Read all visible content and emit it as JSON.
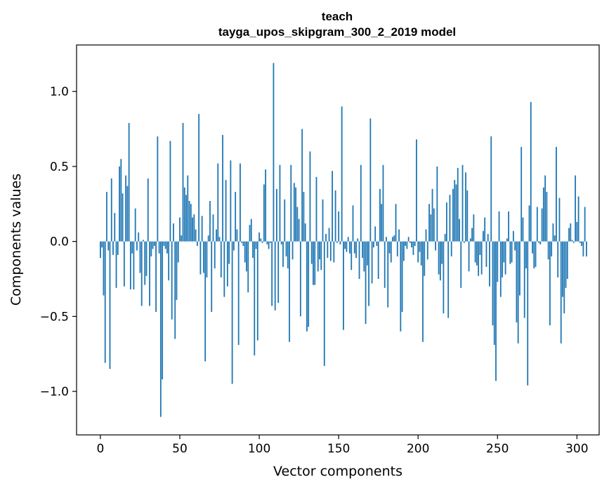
{
  "chart_data": {
    "type": "bar",
    "title_line1": "teach",
    "title_line2": "tayga_upos_skipgram_300_2_2019 model",
    "xlabel": "Vector components",
    "ylabel": "Components values",
    "xlim": [
      -15,
      314
    ],
    "ylim": [
      -1.29,
      1.31
    ],
    "xticks": [
      0,
      50,
      100,
      150,
      200,
      250,
      300
    ],
    "xtick_labels": [
      "0",
      "50",
      "100",
      "150",
      "200",
      "250",
      "300"
    ],
    "yticks": [
      -1.0,
      -0.5,
      0.0,
      0.5,
      1.0
    ],
    "ytick_labels": [
      "−1.0",
      "−0.5",
      "0.0",
      "0.5",
      "1.0"
    ],
    "bar_color": "#1f77b4",
    "values": [
      -0.11,
      -0.04,
      -0.36,
      -0.81,
      0.33,
      -0.06,
      -0.85,
      0.42,
      -0.09,
      0.19,
      -0.31,
      -0.09,
      0.5,
      0.55,
      0.32,
      -0.3,
      0.44,
      0.37,
      0.79,
      -0.32,
      -0.08,
      -0.32,
      0.22,
      -0.06,
      0.06,
      -0.21,
      -0.43,
      0.01,
      -0.29,
      -0.23,
      0.42,
      -0.43,
      -0.1,
      -0.05,
      -0.03,
      -0.47,
      0.7,
      -0.08,
      -1.17,
      -0.92,
      -0.03,
      -0.05,
      -0.08,
      -0.26,
      0.67,
      -0.52,
      0.12,
      -0.65,
      -0.39,
      -0.14,
      0.16,
      0.04,
      0.79,
      0.36,
      0.31,
      0.44,
      0.27,
      0.25,
      0.16,
      0.18,
      0.08,
      -0.03,
      0.85,
      -0.22,
      0.17,
      -0.21,
      -0.8,
      -0.24,
      0.04,
      0.27,
      -0.47,
      0.18,
      -0.18,
      0.08,
      0.52,
      0.03,
      -0.24,
      0.71,
      -0.37,
      0.41,
      -0.3,
      -0.15,
      0.54,
      -0.95,
      -0.06,
      0.33,
      0.08,
      -0.69,
      0.52,
      -0.01,
      -0.03,
      -0.14,
      -0.2,
      -0.34,
      0.11,
      0.15,
      -0.11,
      -0.76,
      -0.05,
      -0.66,
      0.06,
      0.02,
      -0.01,
      0.38,
      0.48,
      -0.02,
      -0.05,
      -0.01,
      -0.43,
      1.19,
      -0.46,
      0.35,
      -0.41,
      0.51,
      -0.02,
      -0.17,
      0.28,
      -0.1,
      -0.18,
      -0.67,
      0.51,
      -0.12,
      0.39,
      0.36,
      0.23,
      0.15,
      -0.5,
      0.75,
      0.33,
      0.12,
      -0.6,
      -0.57,
      0.6,
      -0.15,
      -0.29,
      -0.29,
      0.43,
      -0.2,
      -0.12,
      -0.19,
      0.28,
      -0.83,
      0.05,
      -0.11,
      0.09,
      -0.13,
      0.47,
      -0.14,
      0.34,
      -0.01,
      0.2,
      -0.02,
      0.9,
      -0.59,
      -0.05,
      -0.07,
      0.03,
      -0.08,
      -0.19,
      0.24,
      -0.08,
      -0.11,
      0.02,
      -0.25,
      0.51,
      -0.11,
      -0.2,
      -0.55,
      -0.16,
      -0.43,
      0.82,
      -0.28,
      -0.04,
      0.1,
      -0.03,
      -0.25,
      0.35,
      0.25,
      0.51,
      -0.31,
      0.03,
      -0.44,
      -0.08,
      -0.14,
      0.03,
      0.04,
      0.25,
      -0.1,
      0.08,
      -0.6,
      -0.47,
      -0.13,
      -0.03,
      -0.05,
      0.03,
      -0.01,
      -0.04,
      -0.09,
      -0.03,
      0.68,
      -0.14,
      -0.07,
      -0.16,
      -0.67,
      -0.23,
      0.08,
      -0.12,
      0.25,
      0.18,
      0.35,
      0.22,
      -0.06,
      0.5,
      -0.22,
      -0.26,
      -0.15,
      -0.48,
      0.05,
      0.26,
      -0.51,
      0.31,
      -0.1,
      0.35,
      0.41,
      0.38,
      0.49,
      0.15,
      -0.31,
      0.51,
      -0.01,
      0.46,
      0.34,
      -0.2,
      0.02,
      0.09,
      0.18,
      -0.14,
      -0.16,
      -0.23,
      -0.09,
      -0.22,
      0.07,
      0.16,
      -0.17,
      0.05,
      -0.3,
      0.7,
      -0.56,
      -0.69,
      -0.93,
      -0.27,
      0.2,
      -0.37,
      -0.24,
      -0.14,
      -0.22,
      0.02,
      0.2,
      -0.15,
      -0.14,
      0.07,
      -0.06,
      -0.54,
      -0.68,
      -0.36,
      0.63,
      0.16,
      -0.51,
      -0.18,
      -0.96,
      0.24,
      0.93,
      -0.08,
      -0.18,
      -0.17,
      0.23,
      -0.01,
      -0.02,
      0.22,
      0.36,
      0.44,
      0.33,
      -0.12,
      -0.56,
      -0.1,
      0.12,
      0.04,
      0.63,
      -0.24,
      0.29,
      -0.68,
      -0.37,
      -0.48,
      -0.31,
      -0.25,
      0.09,
      0.12,
      0.01,
      -0.01,
      0.44,
      0.13,
      0.3,
      -0.01,
      -0.03,
      -0.1,
      0.23,
      -0.1
    ]
  }
}
